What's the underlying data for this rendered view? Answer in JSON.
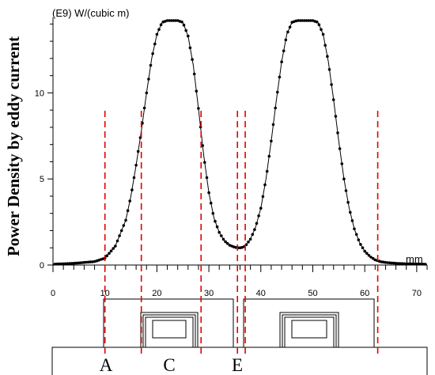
{
  "chart_data": {
    "type": "line",
    "title": "",
    "ylabel": "Power Density by eddy current",
    "yunit": "(E9) W/(cubic m)",
    "xlabel": "mm",
    "xlim": [
      0,
      72
    ],
    "ylim": [
      0,
      14.2
    ],
    "x_ticks": [
      0,
      10,
      20,
      30,
      40,
      50,
      60,
      70
    ],
    "y_ticks": [
      0,
      5,
      10
    ],
    "series": [
      {
        "name": "",
        "color": "#000000",
        "marker": "dot",
        "x": [
          0,
          4,
          8,
          10,
          12,
          14,
          15,
          16,
          17,
          18,
          19,
          20,
          21,
          22,
          23,
          24,
          25,
          26,
          27,
          28,
          29,
          30,
          31,
          32,
          33,
          34,
          35,
          35.5,
          36,
          36.5,
          37,
          38,
          39,
          40,
          41,
          42,
          43,
          44,
          45,
          46,
          47,
          48,
          49,
          50,
          51,
          52,
          53,
          54,
          55,
          56,
          57,
          58,
          59,
          60,
          61,
          62,
          63,
          64,
          66,
          68,
          72
        ],
        "y": [
          0.05,
          0.1,
          0.2,
          0.4,
          1.1,
          2.6,
          4.0,
          5.8,
          7.8,
          10.0,
          12.0,
          13.4,
          14.1,
          14.2,
          14.2,
          14.2,
          14.1,
          13.3,
          11.6,
          9.1,
          6.4,
          4.2,
          2.7,
          1.9,
          1.4,
          1.15,
          1.03,
          1.0,
          1.0,
          1.03,
          1.1,
          1.5,
          2.2,
          3.3,
          5.0,
          7.2,
          9.6,
          11.8,
          13.4,
          14.1,
          14.2,
          14.2,
          14.2,
          14.2,
          14.1,
          13.4,
          11.8,
          9.6,
          7.2,
          5.0,
          3.3,
          2.1,
          1.3,
          0.8,
          0.5,
          0.3,
          0.2,
          0.15,
          0.1,
          0.07,
          0.05
        ]
      }
    ],
    "markers": [
      {
        "x": 10,
        "label": "A"
      },
      {
        "x": 17,
        "label": ""
      },
      {
        "x": 28.5,
        "label": "C"
      },
      {
        "x": 35.5,
        "label": ""
      },
      {
        "x": 37,
        "label": "E"
      },
      {
        "x": 62.5,
        "label": ""
      }
    ],
    "marker_color": "#e00000",
    "region_labels": [
      "A",
      "C",
      "E"
    ]
  }
}
